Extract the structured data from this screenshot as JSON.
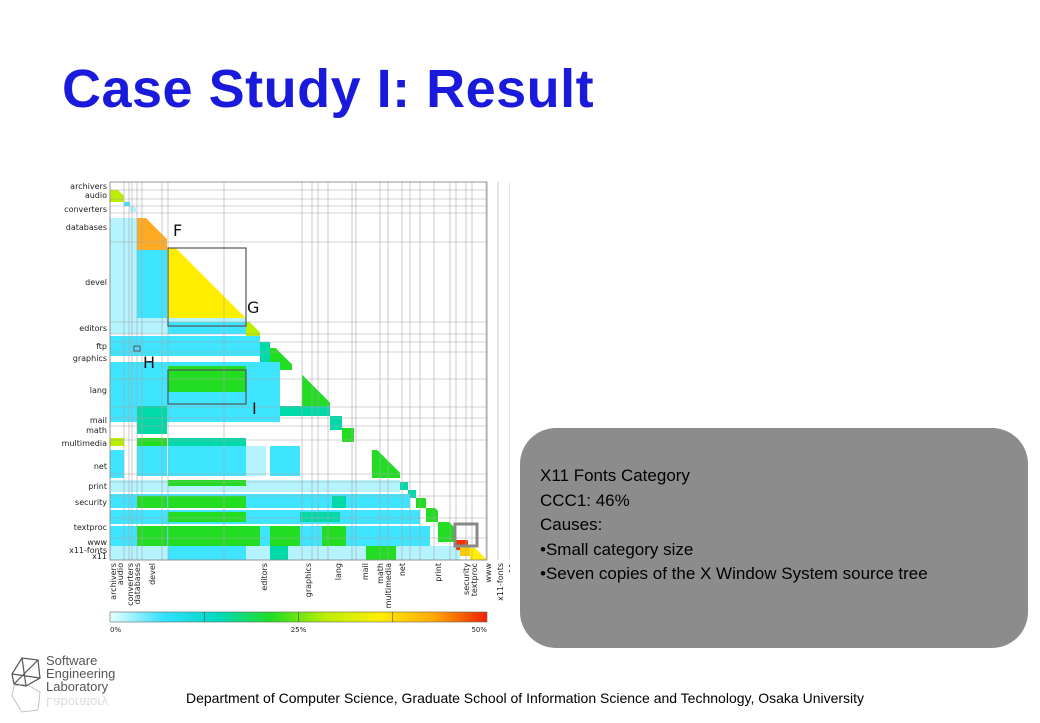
{
  "slide": {
    "title": "Case Study I: Result",
    "footer": "Department of Computer Science, Graduate School of Information Science and Technology, Osaka University",
    "logo": {
      "lines": [
        "Software",
        "Engineering",
        "Laboratory"
      ],
      "icon": "lab-network-icon"
    }
  },
  "chart_data": {
    "type": "heatmap",
    "row_labels": [
      "archivers",
      "audio",
      "converters",
      "databases",
      "devel",
      "editors",
      "ftp",
      "graphics",
      "lang",
      "mail",
      "math",
      "multimedia",
      "net",
      "print",
      "security",
      "textproc",
      "www",
      "x11-fonts",
      "x11"
    ],
    "col_labels": [
      "archivers",
      "audio",
      "converters",
      "databases",
      "devel",
      "editors",
      "graphics",
      "lang",
      "mail",
      "math",
      "multimedia",
      "net",
      "print",
      "security",
      "textproc",
      "www",
      "x11-fonts",
      "x11"
    ],
    "annotations": [
      "F",
      "G",
      "H",
      "I"
    ],
    "colorbar": {
      "ticks": [
        "0%",
        "25%",
        "50%"
      ],
      "min": 0,
      "max": 50,
      "colors": [
        "#e6ffff",
        "#33e0ff",
        "#00d9c0",
        "#22dd22",
        "#bbee00",
        "#ffee00",
        "#ffaa00",
        "#ee2200"
      ]
    }
  },
  "callout": {
    "lines": [
      "X11 Fonts Category",
      "CCC1: 46%",
      "Causes:",
      "•Small category size",
      "•Seven copies of the X Window System source tree"
    ]
  }
}
